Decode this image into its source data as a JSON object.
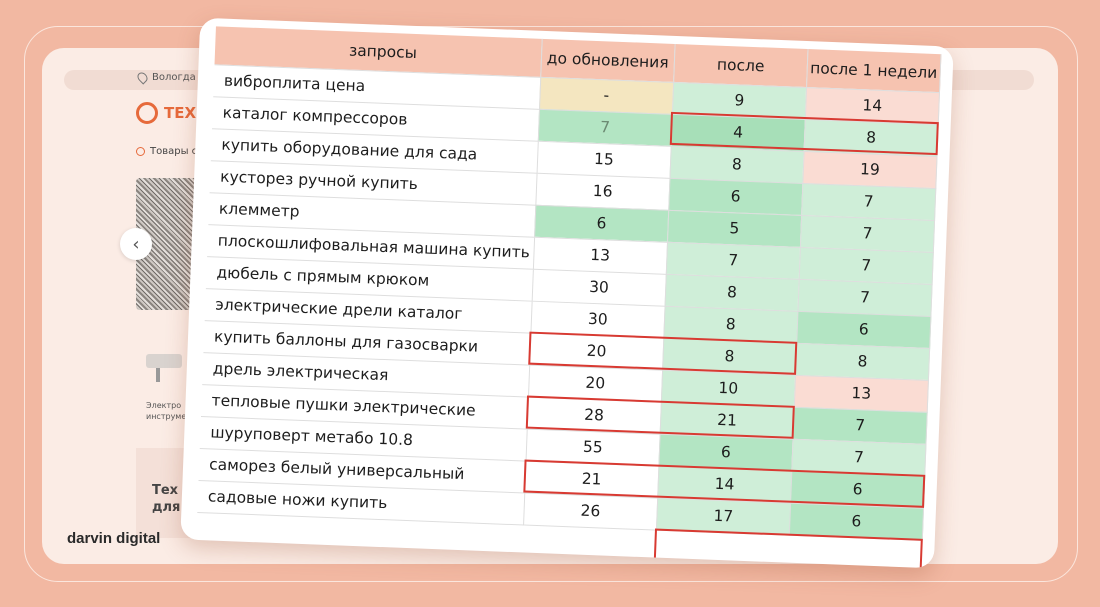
{
  "background": {
    "city": "Вологда",
    "logo_text": "ТЕХНО",
    "goods_label": "Товары со",
    "tool_label_lines": [
      "Электро",
      "инструме"
    ],
    "banner_lines": [
      "Тех",
      "для"
    ],
    "arrow": "‹"
  },
  "brand": "darvin digital",
  "table": {
    "headers": [
      "запросы",
      "до обновления",
      "после",
      "после 1 недели"
    ],
    "rows": [
      {
        "query": "виброплита цена",
        "before": "-",
        "after": "9",
        "week": "14"
      },
      {
        "query": "каталог компрессоров",
        "before": "7",
        "after": "4",
        "week": "8"
      },
      {
        "query": "купить оборудование для сада",
        "before": "15",
        "after": "8",
        "week": "19"
      },
      {
        "query": "кусторез ручной купить",
        "before": "16",
        "after": "6",
        "week": "7"
      },
      {
        "query": "клемметр",
        "before": "6",
        "after": "5",
        "week": "7"
      },
      {
        "query": "плоскошлифовальная машина купить",
        "before": "13",
        "after": "7",
        "week": "7"
      },
      {
        "query": "дюбель с прямым крюком",
        "before": "30",
        "after": "8",
        "week": "7"
      },
      {
        "query": "электрические дрели каталог",
        "before": "30",
        "after": "8",
        "week": "6"
      },
      {
        "query": "купить баллоны для газосварки",
        "before": "20",
        "after": "8",
        "week": "8"
      },
      {
        "query": "дрель электрическая",
        "before": "20",
        "after": "10",
        "week": "13"
      },
      {
        "query": "тепловые пушки электрические",
        "before": "28",
        "after": "21",
        "week": "7"
      },
      {
        "query": "шуруповерт метабо 10.8",
        "before": "55",
        "after": "6",
        "week": "7"
      },
      {
        "query": "саморез белый универсальный",
        "before": "21",
        "after": "14",
        "week": "6"
      },
      {
        "query": "садовые ножи купить",
        "before": "26",
        "after": "17",
        "week": "6"
      }
    ]
  },
  "colors": {
    "page_bg": "#f2b8a2",
    "header_bg": "#f6c3b0",
    "highlight_border": "#d83a32",
    "green_dark": "#a7dfb8",
    "green_light": "#cfeed8",
    "red_light": "#fadcd3",
    "yellow": "#f4e6c0"
  }
}
